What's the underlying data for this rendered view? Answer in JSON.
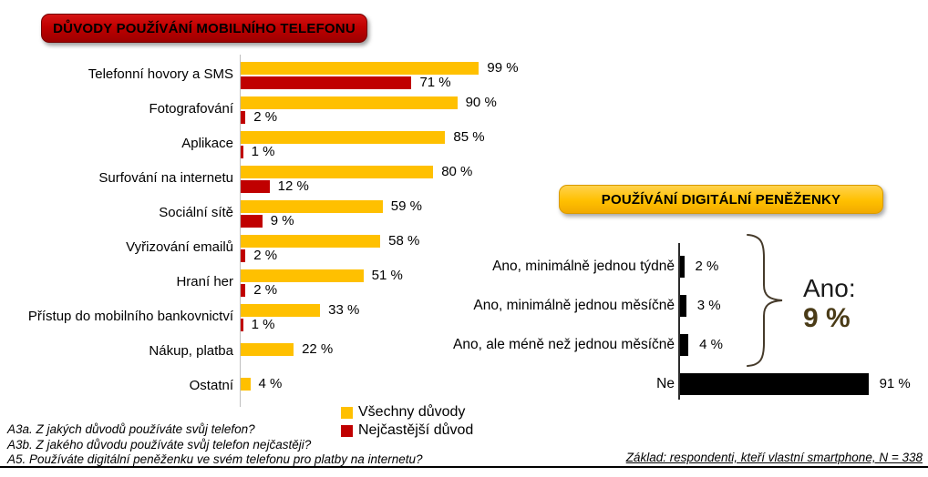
{
  "chart_data": [
    {
      "type": "bar",
      "orientation": "horizontal",
      "title": "DŮVODY POUŽÍVÁNÍ MOBILNÍHO TELEFONU",
      "title_bg": "#C00000",
      "categories": [
        "Telefonní hovory a SMS",
        "Fotografování",
        "Aplikace",
        "Surfování na internetu",
        "Sociální sítě",
        "Vyřizování emailů",
        "Hraní her",
        "Přístup do mobilního bankovnictví",
        "Nákup, platba",
        "Ostatní"
      ],
      "series": [
        {
          "name": "Všechny důvody",
          "color": "#FFC000",
          "values": [
            99,
            90,
            85,
            80,
            59,
            58,
            51,
            33,
            22,
            4
          ]
        },
        {
          "name": "Nejčastější důvod",
          "color": "#C00000",
          "values": [
            71,
            2,
            1,
            12,
            9,
            2,
            2,
            1,
            null,
            null
          ]
        }
      ],
      "value_suffix": " %",
      "xlim": [
        0,
        100
      ],
      "grid": false,
      "legend_position": "bottom-right"
    },
    {
      "type": "bar",
      "orientation": "horizontal",
      "title": "POUŽÍVÁNÍ DIGITÁLNÍ PENĚŽENKY",
      "title_bg": "#FFC000",
      "categories": [
        "Ano, minimálně jednou týdně",
        "Ano, minimálně jednou měsíčně",
        "Ano, ale méně než jednou měsíčně",
        "Ne"
      ],
      "values": [
        2,
        3,
        4,
        91
      ],
      "bar_color": "#000000",
      "annotation": {
        "label": "Ano:",
        "value": "9 %",
        "value_color": "#4A3B17"
      },
      "value_suffix": " %",
      "xlim": [
        0,
        100
      ],
      "grid": false
    }
  ],
  "footnotes": [
    "A3a. Z jakých důvodů používáte svůj telefon?",
    "A3b. Z jakého důvodu používáte svůj telefon nejčastěji?",
    "A5. Používáte digitální peněženku ve svém telefonu pro platby na internetu?"
  ],
  "base_note": "Základ: respondenti, kteří vlastní smartphone, N = 338"
}
